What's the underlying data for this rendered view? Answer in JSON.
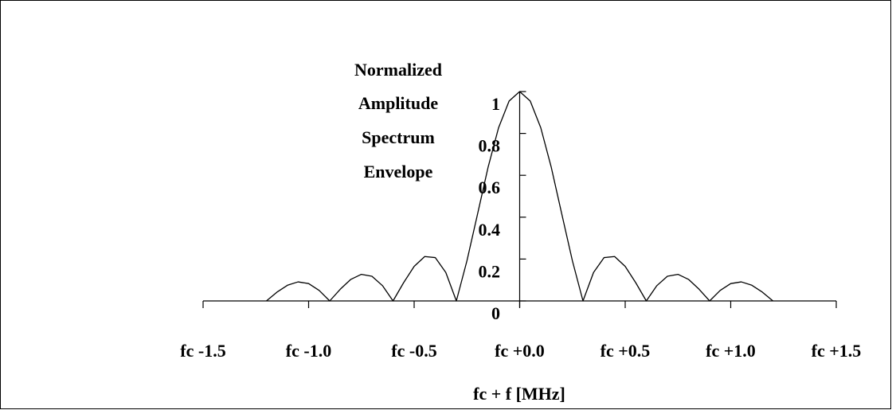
{
  "chart_data": {
    "type": "line",
    "ylabel": [
      "Normalized",
      "Amplitude",
      "Spectrum",
      "Envelope"
    ],
    "xlabel": "fc + f [MHz]",
    "xlim": [
      -1.5,
      1.5
    ],
    "xticks": [
      {
        "value": -1.5,
        "label": "fc -1.5"
      },
      {
        "value": -1.0,
        "label": "fc -1.0"
      },
      {
        "value": -0.5,
        "label": "fc -0.5"
      },
      {
        "value": 0,
        "label": "fc +0.0"
      },
      {
        "value": 0.5,
        "label": "fc +0.5"
      },
      {
        "value": 1.0,
        "label": "fc +1.0"
      },
      {
        "value": 1.5,
        "label": "fc +1.5"
      }
    ],
    "ylim": [
      0,
      1
    ],
    "yticks": [
      0,
      0.2,
      0.4,
      0.6,
      0.8,
      1
    ],
    "grid": false,
    "color": "#000000",
    "x": [
      -1.2,
      -1.15,
      -1.1,
      -1.05,
      -1.0,
      -0.95,
      -0.9,
      -0.85,
      -0.8,
      -0.75,
      -0.7,
      -0.65,
      -0.6,
      -0.55,
      -0.5,
      -0.45,
      -0.4,
      -0.35,
      -0.3,
      -0.25,
      -0.2,
      -0.15,
      -0.1,
      -0.05,
      0,
      0.05,
      0.1,
      0.15,
      0.2,
      0.25,
      0.3,
      0.35,
      0.4,
      0.45,
      0.5,
      0.55,
      0.6,
      0.65,
      0.7,
      0.75,
      0.8,
      0.85,
      0.9,
      0.95,
      1.0,
      1.05,
      1.1,
      1.15,
      1.2
    ],
    "values": [
      0,
      0.042,
      0.075,
      0.091,
      0.083,
      0.05,
      0,
      0.056,
      0.103,
      0.127,
      0.118,
      0.073,
      0,
      0.087,
      0.165,
      0.212,
      0.207,
      0.136,
      0,
      0.191,
      0.413,
      0.637,
      0.827,
      0.955,
      1,
      0.955,
      0.827,
      0.637,
      0.413,
      0.191,
      0,
      0.136,
      0.207,
      0.212,
      0.165,
      0.087,
      0,
      0.073,
      0.118,
      0.127,
      0.103,
      0.056,
      0,
      0.05,
      0.083,
      0.091,
      0.075,
      0.042,
      0
    ]
  }
}
